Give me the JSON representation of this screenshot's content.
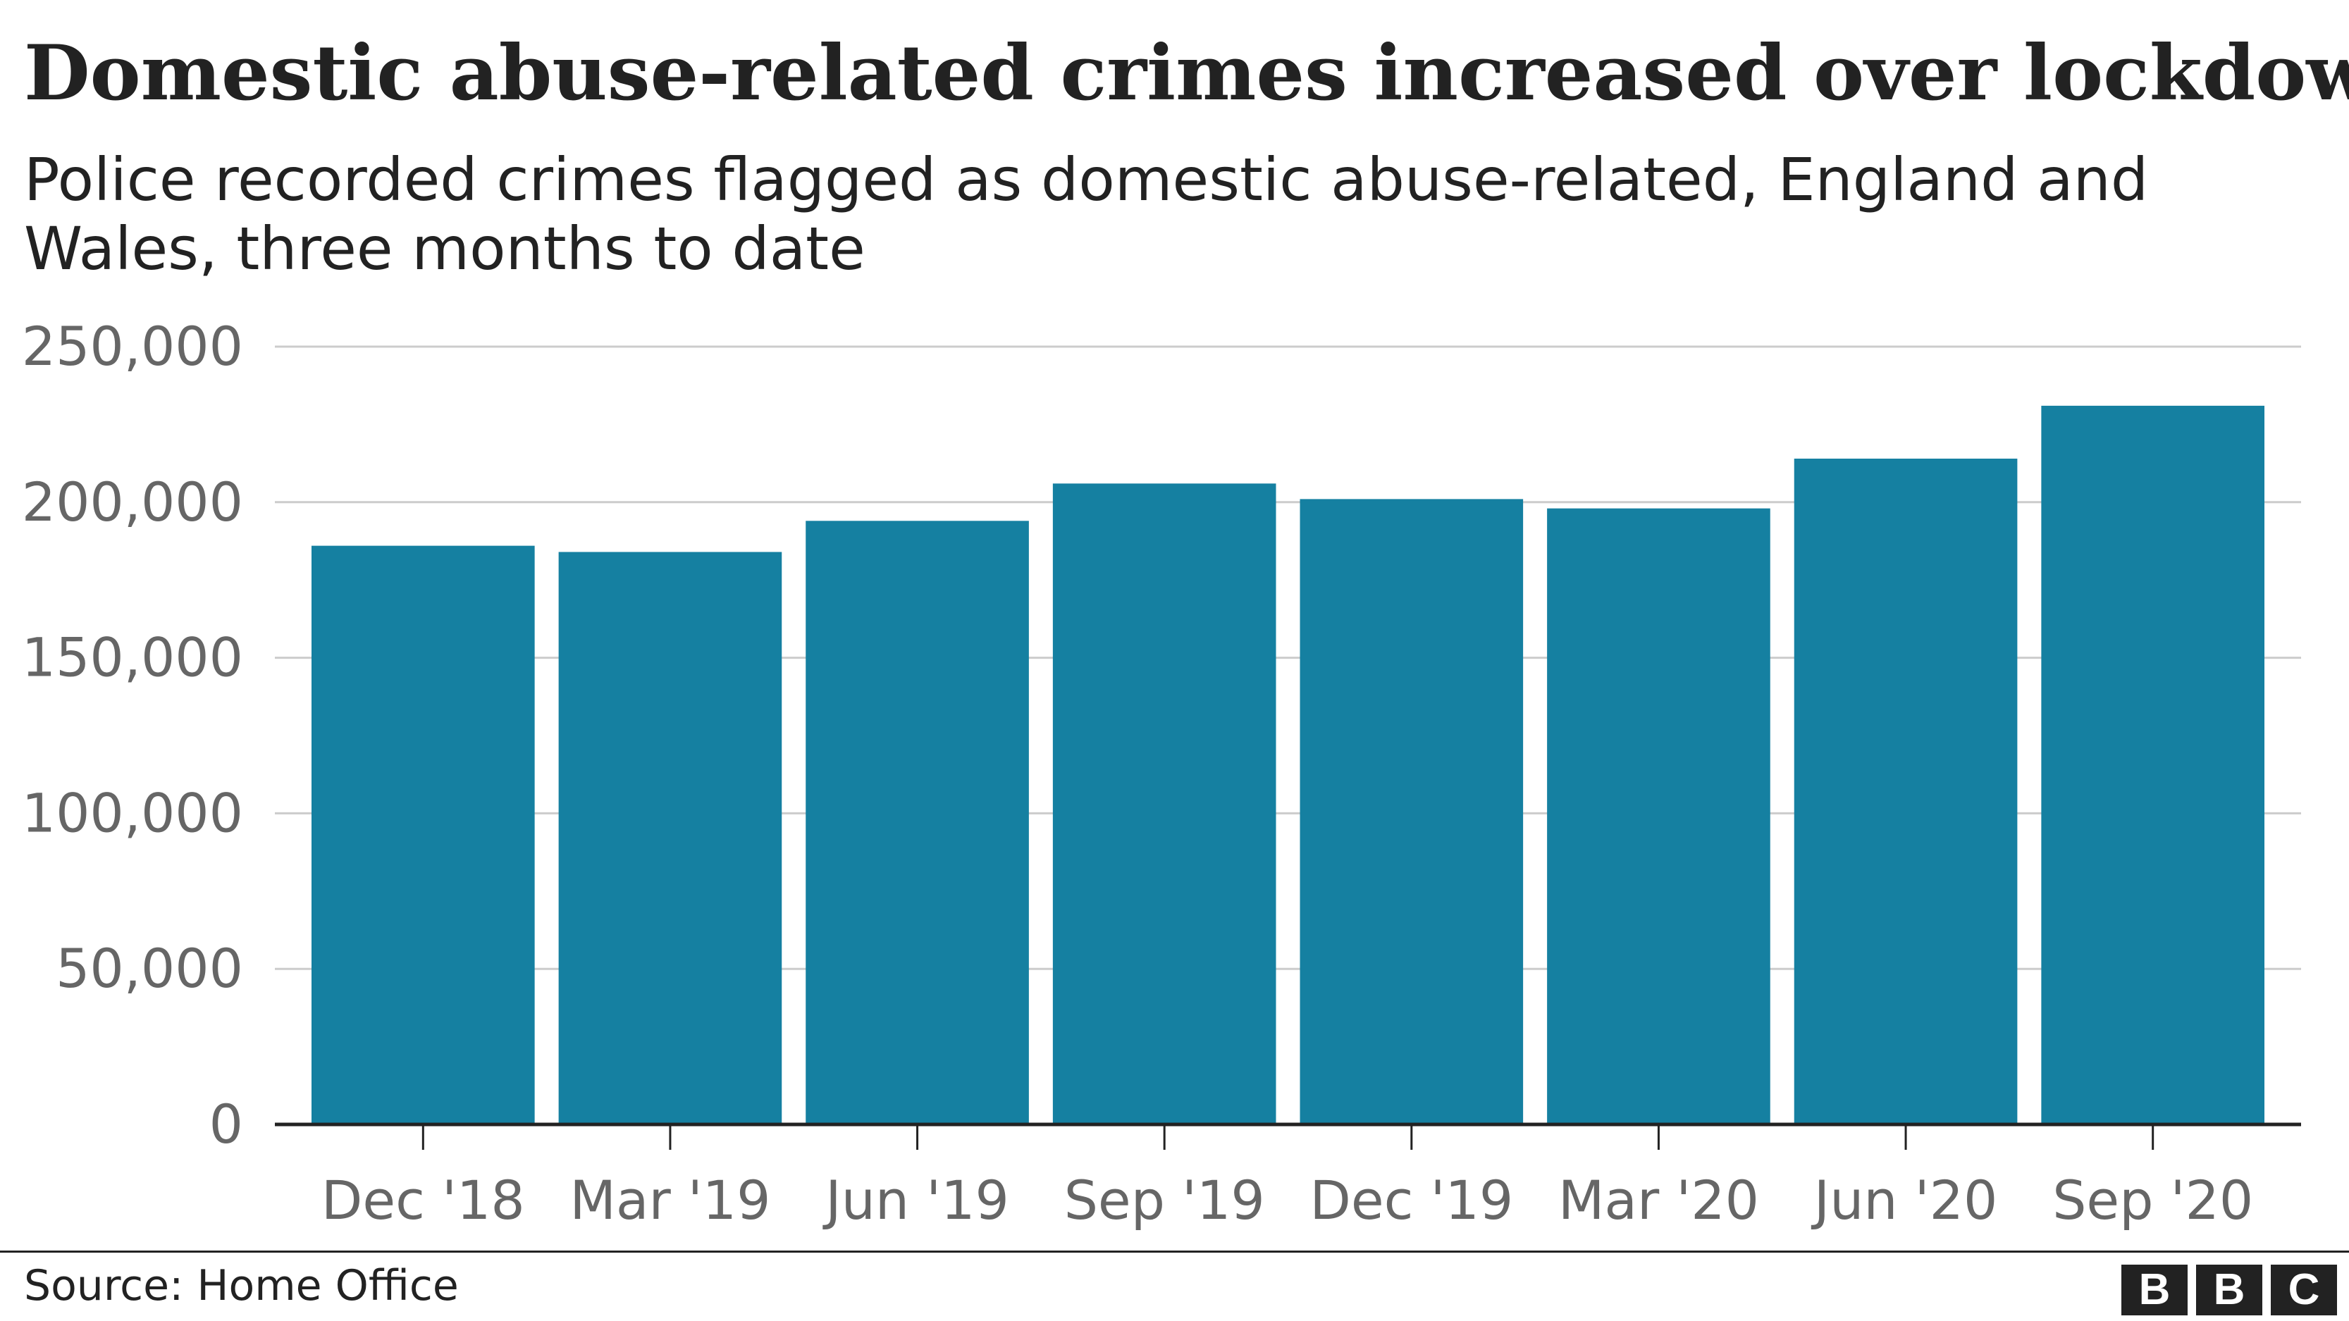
{
  "header": {
    "title": "Domestic abuse-related crimes increased over lockdown",
    "subtitle": "Police recorded crimes flagged as domestic abuse-related, England and Wales, three months to date"
  },
  "chart_data": {
    "type": "bar",
    "title": "Domestic abuse-related crimes increased over lockdown",
    "subtitle": "Police recorded crimes flagged as domestic abuse-related, England and Wales, three months to date",
    "xlabel": "",
    "ylabel": "",
    "categories": [
      "Dec '18",
      "Mar '19",
      "Jun '19",
      "Sep '19",
      "Dec '19",
      "Mar '20",
      "Jun '20",
      "Sep '20"
    ],
    "values": [
      186000,
      184000,
      194000,
      206000,
      201000,
      198000,
      214000,
      231000
    ],
    "ylim": [
      0,
      250000
    ],
    "yticks": [
      0,
      50000,
      100000,
      150000,
      200000,
      250000
    ],
    "ytick_labels": [
      "0",
      "50,000",
      "100,000",
      "150,000",
      "200,000",
      "250,000"
    ],
    "grid": true,
    "bar_color": "#1580a1",
    "grid_color": "#cccccc",
    "axis_color": "#222222",
    "tick_label_color": "#666666"
  },
  "footer": {
    "source": "Source: Home Office",
    "logo_letters": [
      "B",
      "B",
      "C"
    ]
  }
}
